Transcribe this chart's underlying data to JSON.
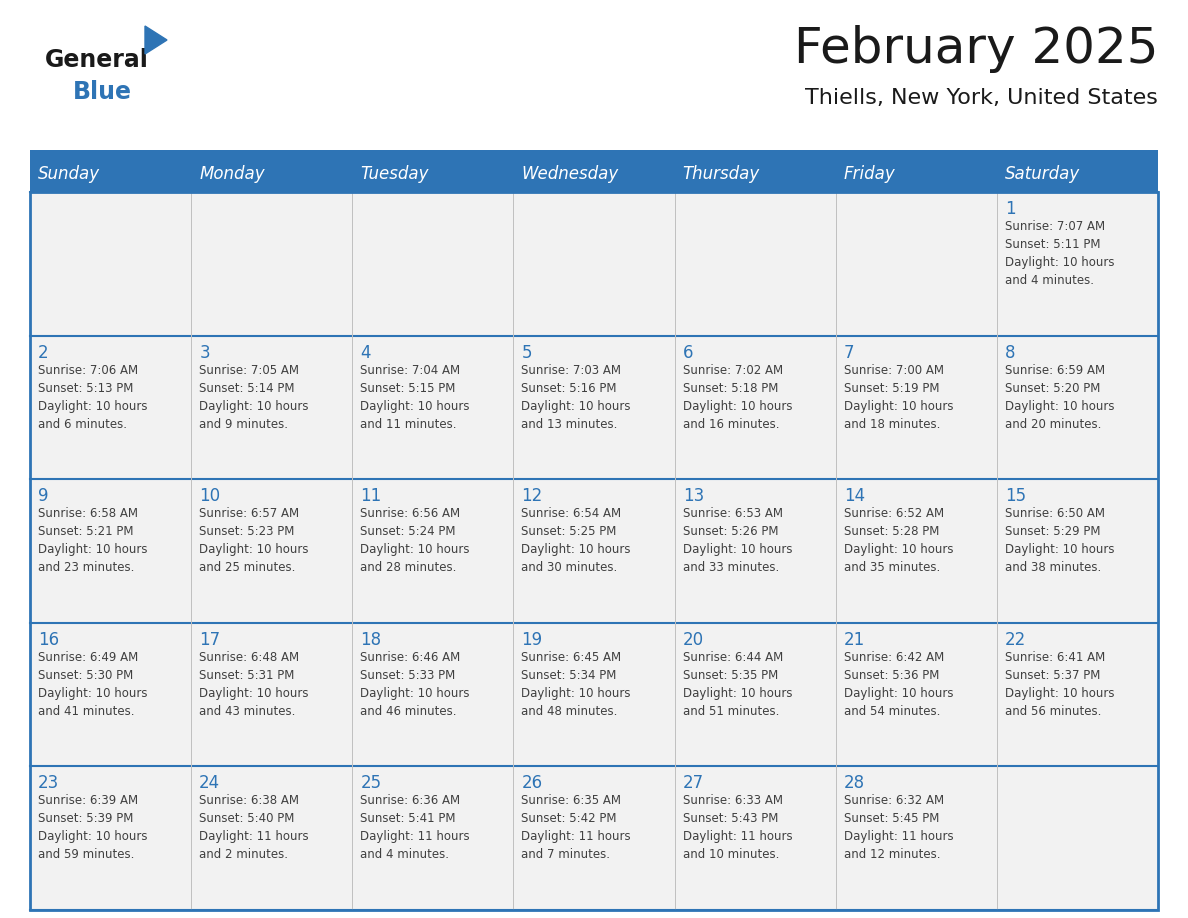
{
  "title": "February 2025",
  "subtitle": "Thiells, New York, United States",
  "header_bg": "#2E74B5",
  "header_text_color": "#FFFFFF",
  "cell_bg": "#F2F2F2",
  "day_number_color": "#2E74B5",
  "body_text_color": "#404040",
  "border_color": "#2E74B5",
  "vline_color": "#AAAAAA",
  "days_of_week": [
    "Sunday",
    "Monday",
    "Tuesday",
    "Wednesday",
    "Thursday",
    "Friday",
    "Saturday"
  ],
  "weeks": [
    [
      {
        "day": null,
        "info": null
      },
      {
        "day": null,
        "info": null
      },
      {
        "day": null,
        "info": null
      },
      {
        "day": null,
        "info": null
      },
      {
        "day": null,
        "info": null
      },
      {
        "day": null,
        "info": null
      },
      {
        "day": 1,
        "info": "Sunrise: 7:07 AM\nSunset: 5:11 PM\nDaylight: 10 hours\nand 4 minutes."
      }
    ],
    [
      {
        "day": 2,
        "info": "Sunrise: 7:06 AM\nSunset: 5:13 PM\nDaylight: 10 hours\nand 6 minutes."
      },
      {
        "day": 3,
        "info": "Sunrise: 7:05 AM\nSunset: 5:14 PM\nDaylight: 10 hours\nand 9 minutes."
      },
      {
        "day": 4,
        "info": "Sunrise: 7:04 AM\nSunset: 5:15 PM\nDaylight: 10 hours\nand 11 minutes."
      },
      {
        "day": 5,
        "info": "Sunrise: 7:03 AM\nSunset: 5:16 PM\nDaylight: 10 hours\nand 13 minutes."
      },
      {
        "day": 6,
        "info": "Sunrise: 7:02 AM\nSunset: 5:18 PM\nDaylight: 10 hours\nand 16 minutes."
      },
      {
        "day": 7,
        "info": "Sunrise: 7:00 AM\nSunset: 5:19 PM\nDaylight: 10 hours\nand 18 minutes."
      },
      {
        "day": 8,
        "info": "Sunrise: 6:59 AM\nSunset: 5:20 PM\nDaylight: 10 hours\nand 20 minutes."
      }
    ],
    [
      {
        "day": 9,
        "info": "Sunrise: 6:58 AM\nSunset: 5:21 PM\nDaylight: 10 hours\nand 23 minutes."
      },
      {
        "day": 10,
        "info": "Sunrise: 6:57 AM\nSunset: 5:23 PM\nDaylight: 10 hours\nand 25 minutes."
      },
      {
        "day": 11,
        "info": "Sunrise: 6:56 AM\nSunset: 5:24 PM\nDaylight: 10 hours\nand 28 minutes."
      },
      {
        "day": 12,
        "info": "Sunrise: 6:54 AM\nSunset: 5:25 PM\nDaylight: 10 hours\nand 30 minutes."
      },
      {
        "day": 13,
        "info": "Sunrise: 6:53 AM\nSunset: 5:26 PM\nDaylight: 10 hours\nand 33 minutes."
      },
      {
        "day": 14,
        "info": "Sunrise: 6:52 AM\nSunset: 5:28 PM\nDaylight: 10 hours\nand 35 minutes."
      },
      {
        "day": 15,
        "info": "Sunrise: 6:50 AM\nSunset: 5:29 PM\nDaylight: 10 hours\nand 38 minutes."
      }
    ],
    [
      {
        "day": 16,
        "info": "Sunrise: 6:49 AM\nSunset: 5:30 PM\nDaylight: 10 hours\nand 41 minutes."
      },
      {
        "day": 17,
        "info": "Sunrise: 6:48 AM\nSunset: 5:31 PM\nDaylight: 10 hours\nand 43 minutes."
      },
      {
        "day": 18,
        "info": "Sunrise: 6:46 AM\nSunset: 5:33 PM\nDaylight: 10 hours\nand 46 minutes."
      },
      {
        "day": 19,
        "info": "Sunrise: 6:45 AM\nSunset: 5:34 PM\nDaylight: 10 hours\nand 48 minutes."
      },
      {
        "day": 20,
        "info": "Sunrise: 6:44 AM\nSunset: 5:35 PM\nDaylight: 10 hours\nand 51 minutes."
      },
      {
        "day": 21,
        "info": "Sunrise: 6:42 AM\nSunset: 5:36 PM\nDaylight: 10 hours\nand 54 minutes."
      },
      {
        "day": 22,
        "info": "Sunrise: 6:41 AM\nSunset: 5:37 PM\nDaylight: 10 hours\nand 56 minutes."
      }
    ],
    [
      {
        "day": 23,
        "info": "Sunrise: 6:39 AM\nSunset: 5:39 PM\nDaylight: 10 hours\nand 59 minutes."
      },
      {
        "day": 24,
        "info": "Sunrise: 6:38 AM\nSunset: 5:40 PM\nDaylight: 11 hours\nand 2 minutes."
      },
      {
        "day": 25,
        "info": "Sunrise: 6:36 AM\nSunset: 5:41 PM\nDaylight: 11 hours\nand 4 minutes."
      },
      {
        "day": 26,
        "info": "Sunrise: 6:35 AM\nSunset: 5:42 PM\nDaylight: 11 hours\nand 7 minutes."
      },
      {
        "day": 27,
        "info": "Sunrise: 6:33 AM\nSunset: 5:43 PM\nDaylight: 11 hours\nand 10 minutes."
      },
      {
        "day": 28,
        "info": "Sunrise: 6:32 AM\nSunset: 5:45 PM\nDaylight: 11 hours\nand 12 minutes."
      },
      {
        "day": null,
        "info": null
      }
    ]
  ],
  "logo_text1": "General",
  "logo_text2": "Blue",
  "logo_color1": "#1A1A1A",
  "logo_color2": "#2E74B5",
  "logo_triangle_color": "#2E74B5",
  "fig_width": 11.88,
  "fig_height": 9.18,
  "dpi": 100
}
